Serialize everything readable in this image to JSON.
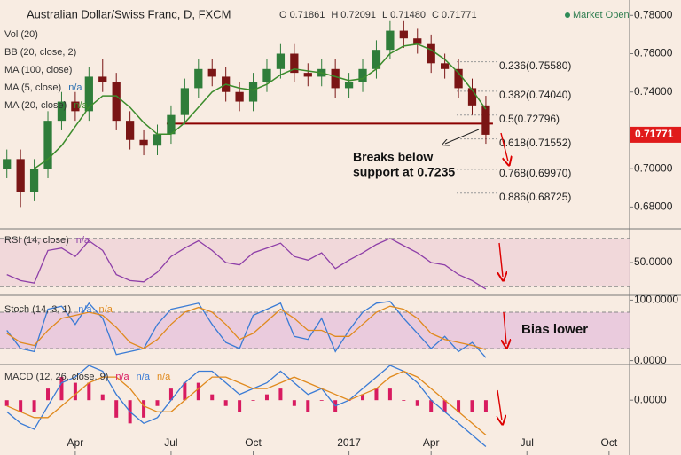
{
  "header": {
    "title": "Australian Dollar/Swiss Franc, D, FXCM",
    "ohlc": [
      {
        "key": "O",
        "label": "0.71861",
        "value": 0.71861
      },
      {
        "key": "H",
        "label": "0.72091",
        "value": 0.72091
      },
      {
        "key": "L",
        "label": "0.71480",
        "value": 0.7148
      },
      {
        "key": "C",
        "label": "0.71771",
        "value": 0.71771
      }
    ],
    "status": "Market Open"
  },
  "chart_data": [
    {
      "type": "candlestick",
      "categories": [
        null,
        null,
        null,
        null,
        null,
        "Apr",
        null,
        null,
        null,
        null,
        null,
        null,
        "Jul",
        null,
        null,
        null,
        null,
        null,
        "Oct",
        null,
        null,
        null,
        null,
        null,
        null,
        "2017",
        null,
        null,
        null,
        null,
        null,
        "Apr",
        null,
        null,
        null,
        null,
        null,
        null,
        "Jul",
        null,
        null,
        null,
        null,
        null,
        "Oct",
        null
      ],
      "open": [
        0.7,
        0.705,
        0.688,
        0.7,
        0.725,
        0.735,
        0.73,
        0.748,
        0.745,
        0.725,
        0.715,
        0.712,
        0.718,
        0.728,
        0.742,
        0.752,
        0.748,
        0.74,
        0.735,
        0.745,
        0.752,
        0.76,
        0.75,
        0.748,
        0.752,
        0.742,
        0.745,
        0.752,
        0.762,
        0.772,
        0.768,
        0.765,
        0.755,
        0.752,
        0.742,
        0.733,
        null,
        null,
        null,
        null,
        null,
        null,
        null,
        null,
        null,
        null
      ],
      "high": [
        0.71,
        0.71,
        0.705,
        0.73,
        0.74,
        0.74,
        0.753,
        0.757,
        0.75,
        0.73,
        0.72,
        0.723,
        0.733,
        0.747,
        0.757,
        0.757,
        0.753,
        0.745,
        0.75,
        0.757,
        0.765,
        0.765,
        0.755,
        0.757,
        0.757,
        0.75,
        0.757,
        0.767,
        0.777,
        0.777,
        0.773,
        0.77,
        0.76,
        0.757,
        0.747,
        0.738,
        null,
        null,
        null,
        null,
        null,
        null,
        null,
        null,
        null,
        null
      ],
      "low": [
        0.695,
        0.68,
        0.683,
        0.695,
        0.72,
        0.725,
        0.725,
        0.74,
        0.72,
        0.71,
        0.707,
        0.707,
        0.713,
        0.723,
        0.737,
        0.743,
        0.735,
        0.73,
        0.73,
        0.74,
        0.747,
        0.745,
        0.743,
        0.743,
        0.737,
        0.737,
        0.74,
        0.747,
        0.757,
        0.763,
        0.76,
        0.75,
        0.747,
        0.737,
        0.728,
        0.713,
        null,
        null,
        null,
        null,
        null,
        null,
        null,
        null,
        null,
        null
      ],
      "close": [
        0.705,
        0.688,
        0.7,
        0.725,
        0.735,
        0.73,
        0.748,
        0.745,
        0.725,
        0.715,
        0.712,
        0.718,
        0.728,
        0.742,
        0.752,
        0.748,
        0.74,
        0.735,
        0.745,
        0.752,
        0.76,
        0.75,
        0.748,
        0.752,
        0.742,
        0.745,
        0.752,
        0.762,
        0.772,
        0.768,
        0.765,
        0.755,
        0.752,
        0.742,
        0.733,
        0.7177,
        null,
        null,
        null,
        null,
        null,
        null,
        null,
        null,
        null,
        null
      ],
      "candle_colors": {
        "up": "#2f7d3a",
        "down": "#7a1515"
      },
      "series": [
        {
          "name": "MA (20, close)",
          "status": "n/a",
          "color": "#3c8c2c",
          "values": [
            null,
            null,
            0.7,
            0.705,
            0.712,
            0.722,
            0.732,
            0.738,
            0.738,
            0.732,
            0.724,
            0.718,
            0.718,
            0.724,
            0.732,
            0.74,
            0.744,
            0.742,
            0.741,
            0.744,
            0.749,
            0.752,
            0.751,
            0.75,
            0.748,
            0.746,
            0.747,
            0.752,
            0.76,
            0.764,
            0.765,
            0.762,
            0.757,
            0.75,
            0.741,
            0.731,
            null,
            null,
            null,
            null,
            null,
            null,
            null,
            null,
            null,
            null
          ]
        }
      ],
      "indicators": [
        {
          "name": "Vol (20)"
        },
        {
          "name": "BB (20, close, 2)"
        },
        {
          "name": "MA (100, close)"
        },
        {
          "name": "MA (5, close)",
          "status": "n/a"
        }
      ],
      "ylim": [
        0.67,
        0.788
      ],
      "yticks": [
        {
          "value": 0.68,
          "label": "0.68000"
        },
        {
          "value": 0.7,
          "label": "0.70000"
        },
        {
          "value": 0.74,
          "label": "0.74000"
        },
        {
          "value": 0.76,
          "label": "0.76000"
        },
        {
          "value": 0.78,
          "label": "0.78000"
        }
      ],
      "support": {
        "value": 0.7235,
        "color": "#8b0000"
      },
      "fib_levels": [
        {
          "label": "0.236(0.75580)",
          "value": 0.7558
        },
        {
          "label": "0.382(0.74040)",
          "value": 0.7404
        },
        {
          "label": "0.5(0.72796)",
          "value": 0.72796
        },
        {
          "label": "0.618(0.71552)",
          "value": 0.71552
        },
        {
          "label": "0.768(0.69970)",
          "value": 0.6997
        },
        {
          "label": "0.886(0.68725)",
          "value": 0.68725
        }
      ],
      "annotations": [
        "Breaks below",
        "support at 0.7235"
      ]
    },
    {
      "type": "line",
      "title": "RSI (14, close)",
      "status": "n/a",
      "color": "#8e3fa8",
      "values": [
        40,
        35,
        33,
        60,
        62,
        55,
        68,
        60,
        40,
        35,
        34,
        42,
        55,
        62,
        68,
        60,
        50,
        48,
        58,
        62,
        66,
        55,
        52,
        58,
        45,
        52,
        58,
        65,
        70,
        64,
        58,
        50,
        48,
        40,
        35,
        28,
        null,
        null,
        null,
        null,
        null,
        null,
        null,
        null,
        null,
        null
      ],
      "ylim": [
        25,
        75
      ],
      "yticks": [
        {
          "value": 50,
          "label": "50.0000"
        }
      ],
      "band": [
        30,
        70
      ]
    },
    {
      "type": "line",
      "title": "Stoch (14, 3, 1)",
      "series": [
        {
          "status": "n/a",
          "color": "#3a7bd5",
          "values": [
            50,
            20,
            15,
            85,
            90,
            60,
            95,
            70,
            10,
            15,
            20,
            60,
            85,
            90,
            95,
            60,
            30,
            20,
            75,
            85,
            95,
            40,
            35,
            70,
            15,
            50,
            80,
            95,
            98,
            70,
            45,
            20,
            40,
            15,
            30,
            5,
            null,
            null,
            null,
            null,
            null,
            null,
            null,
            null,
            null,
            null
          ]
        },
        {
          "status": "n/a",
          "color": "#e08a1e",
          "values": [
            45,
            30,
            25,
            50,
            70,
            75,
            80,
            75,
            55,
            30,
            20,
            35,
            60,
            80,
            88,
            80,
            60,
            35,
            45,
            65,
            85,
            70,
            50,
            50,
            40,
            40,
            60,
            80,
            90,
            85,
            70,
            45,
            35,
            30,
            25,
            18,
            null,
            null,
            null,
            null,
            null,
            null,
            null,
            null,
            null,
            null
          ]
        }
      ],
      "ylim": [
        -5,
        105
      ],
      "yticks": [
        {
          "value": 0,
          "label": "0.0000"
        },
        {
          "value": 100,
          "label": "100.0000"
        }
      ],
      "band": [
        20,
        80
      ],
      "annotations": [
        "Bias lower"
      ]
    },
    {
      "type": "macd",
      "title": "MACD (12, 26, close, 9)",
      "histogram": {
        "status": "n/a",
        "color": "#d81b60",
        "values": [
          -0.001,
          -0.002,
          -0.002,
          0.002,
          0.004,
          0.003,
          0.003,
          0.001,
          -0.003,
          -0.004,
          -0.003,
          -0.001,
          0.002,
          0.003,
          0.003,
          0.001,
          -0.001,
          -0.002,
          0.0,
          0.001,
          0.002,
          -0.001,
          -0.002,
          0.0,
          -0.002,
          0.0,
          0.001,
          0.002,
          0.002,
          0.0,
          -0.001,
          -0.002,
          -0.002,
          -0.002,
          -0.002,
          -0.002,
          null,
          null,
          null,
          null,
          null,
          null,
          null,
          null,
          null,
          null
        ]
      },
      "series": [
        {
          "status": "n/a",
          "color": "#3a7bd5",
          "values": [
            -0.002,
            -0.004,
            -0.005,
            -0.001,
            0.003,
            0.004,
            0.006,
            0.005,
            0.001,
            -0.002,
            -0.004,
            -0.003,
            0.0,
            0.003,
            0.005,
            0.005,
            0.003,
            0.001,
            0.002,
            0.003,
            0.005,
            0.003,
            0.001,
            0.002,
            -0.001,
            0.0,
            0.002,
            0.004,
            0.006,
            0.005,
            0.003,
            0.0,
            -0.002,
            -0.004,
            -0.006,
            -0.008,
            null,
            null,
            null,
            null,
            null,
            null,
            null,
            null,
            null,
            null
          ]
        },
        {
          "status": "n/a",
          "color": "#e08a1e",
          "values": [
            -0.001,
            -0.002,
            -0.003,
            -0.003,
            -0.001,
            0.001,
            0.003,
            0.004,
            0.004,
            0.002,
            -0.001,
            -0.002,
            -0.002,
            0.0,
            0.002,
            0.004,
            0.004,
            0.003,
            0.002,
            0.002,
            0.003,
            0.004,
            0.003,
            0.002,
            0.001,
            0.0,
            0.001,
            0.002,
            0.004,
            0.005,
            0.004,
            0.002,
            0.0,
            -0.002,
            -0.004,
            -0.006,
            null,
            null,
            null,
            null,
            null,
            null,
            null,
            null,
            null,
            null
          ]
        }
      ],
      "ylim": [
        -0.009,
        0.006
      ],
      "yticks": [
        {
          "value": 0,
          "label": "0.0000"
        }
      ]
    }
  ]
}
